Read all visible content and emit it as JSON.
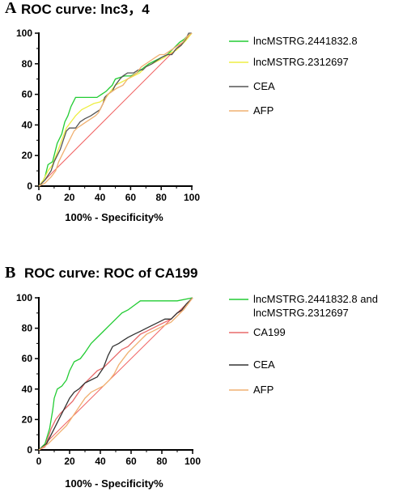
{
  "chart_data": [
    {
      "panel": "A",
      "type": "line",
      "title": "ROC curve: lnc3，4",
      "xlabel": "100% - Specificity%",
      "ylabel": "",
      "xlim": [
        0,
        100
      ],
      "ylim": [
        0,
        100
      ],
      "xticks": [
        "0",
        "20",
        "40",
        "60",
        "80",
        "100"
      ],
      "yticks": [
        "0",
        "20",
        "40",
        "60",
        "80",
        "100"
      ],
      "legend_position": "right",
      "series": [
        {
          "name": "lncMSTRG.2441832.8",
          "color": "#22cc33",
          "points": [
            [
              0,
              0
            ],
            [
              2,
              2
            ],
            [
              4,
              6
            ],
            [
              6,
              14
            ],
            [
              9,
              16
            ],
            [
              10,
              20
            ],
            [
              12,
              28
            ],
            [
              15,
              34
            ],
            [
              17,
              42
            ],
            [
              19,
              46
            ],
            [
              21,
              52
            ],
            [
              24,
              58
            ],
            [
              30,
              58
            ],
            [
              34,
              58
            ],
            [
              38,
              58
            ],
            [
              41,
              60
            ],
            [
              44,
              62
            ],
            [
              46,
              64
            ],
            [
              48,
              66
            ],
            [
              50,
              70
            ],
            [
              53,
              71
            ],
            [
              56,
              72
            ],
            [
              60,
              72
            ],
            [
              64,
              74
            ],
            [
              68,
              77
            ],
            [
              72,
              80
            ],
            [
              76,
              82
            ],
            [
              80,
              84
            ],
            [
              84,
              86
            ],
            [
              88,
              90
            ],
            [
              92,
              94
            ],
            [
              95,
              96
            ],
            [
              97,
              98
            ],
            [
              100,
              100
            ]
          ]
        },
        {
          "name": "lncMSTRG.2312697",
          "color": "#eeee44",
          "points": [
            [
              0,
              0
            ],
            [
              3,
              4
            ],
            [
              6,
              10
            ],
            [
              9,
              14
            ],
            [
              12,
              22
            ],
            [
              15,
              30
            ],
            [
              18,
              38
            ],
            [
              21,
              42
            ],
            [
              24,
              46
            ],
            [
              28,
              50
            ],
            [
              32,
              52
            ],
            [
              36,
              54
            ],
            [
              40,
              55
            ],
            [
              44,
              58
            ],
            [
              47,
              62
            ],
            [
              50,
              66
            ],
            [
              54,
              68
            ],
            [
              58,
              70
            ],
            [
              62,
              72
            ],
            [
              66,
              74
            ],
            [
              70,
              78
            ],
            [
              74,
              80
            ],
            [
              78,
              82
            ],
            [
              82,
              84
            ],
            [
              86,
              87
            ],
            [
              90,
              89
            ],
            [
              93,
              92
            ],
            [
              96,
              95
            ],
            [
              100,
              100
            ]
          ]
        },
        {
          "name": "CEA",
          "color": "#555555",
          "points": [
            [
              0,
              0
            ],
            [
              4,
              4
            ],
            [
              8,
              10
            ],
            [
              10,
              16
            ],
            [
              12,
              20
            ],
            [
              14,
              24
            ],
            [
              16,
              30
            ],
            [
              18,
              36
            ],
            [
              20,
              38
            ],
            [
              24,
              38
            ],
            [
              27,
              42
            ],
            [
              30,
              44
            ],
            [
              34,
              46
            ],
            [
              37,
              48
            ],
            [
              40,
              50
            ],
            [
              42,
              54
            ],
            [
              43,
              58
            ],
            [
              45,
              60
            ],
            [
              48,
              62
            ],
            [
              50,
              66
            ],
            [
              53,
              70
            ],
            [
              55,
              72
            ],
            [
              58,
              74
            ],
            [
              62,
              74
            ],
            [
              65,
              76
            ],
            [
              68,
              76
            ],
            [
              70,
              78
            ],
            [
              74,
              80
            ],
            [
              77,
              82
            ],
            [
              80,
              84
            ],
            [
              84,
              86
            ],
            [
              87,
              86
            ],
            [
              90,
              90
            ],
            [
              93,
              92
            ],
            [
              96,
              96
            ],
            [
              98,
              100
            ],
            [
              100,
              100
            ]
          ]
        },
        {
          "name": "AFP",
          "color": "#f0b070",
          "points": [
            [
              0,
              0
            ],
            [
              4,
              2
            ],
            [
              8,
              6
            ],
            [
              11,
              10
            ],
            [
              13,
              16
            ],
            [
              15,
              20
            ],
            [
              17,
              24
            ],
            [
              19,
              28
            ],
            [
              21,
              32
            ],
            [
              23,
              36
            ],
            [
              25,
              38
            ],
            [
              28,
              40
            ],
            [
              31,
              42
            ],
            [
              34,
              44
            ],
            [
              37,
              46
            ],
            [
              39,
              48
            ],
            [
              41,
              52
            ],
            [
              43,
              56
            ],
            [
              45,
              60
            ],
            [
              48,
              62
            ],
            [
              51,
              64
            ],
            [
              55,
              66
            ],
            [
              58,
              70
            ],
            [
              61,
              72
            ],
            [
              64,
              74
            ],
            [
              67,
              78
            ],
            [
              70,
              80
            ],
            [
              73,
              82
            ],
            [
              76,
              84
            ],
            [
              79,
              86
            ],
            [
              82,
              86
            ],
            [
              85,
              88
            ],
            [
              88,
              90
            ],
            [
              91,
              92
            ],
            [
              94,
              94
            ],
            [
              97,
              98
            ],
            [
              100,
              100
            ]
          ]
        },
        {
          "name": "",
          "color": "#f06060",
          "reference": true,
          "points": [
            [
              0,
              0
            ],
            [
              100,
              100
            ]
          ]
        }
      ]
    },
    {
      "panel": "B",
      "type": "line",
      "title": "ROC curve: ROC of CA199",
      "xlabel": "100% - Specificity%",
      "ylabel": "",
      "xlim": [
        0,
        100
      ],
      "ylim": [
        0,
        100
      ],
      "xticks": [
        "0",
        "20",
        "40",
        "60",
        "80",
        "100"
      ],
      "yticks": [
        "0",
        "20",
        "40",
        "60",
        "80",
        "100"
      ],
      "legend_position": "right",
      "series": [
        {
          "name": "lncMSTRG.2441832.8 and lncMSTRG.2312697",
          "color": "#22cc33",
          "points": [
            [
              0,
              0
            ],
            [
              4,
              4
            ],
            [
              7,
              14
            ],
            [
              9,
              26
            ],
            [
              10,
              34
            ],
            [
              12,
              40
            ],
            [
              15,
              42
            ],
            [
              18,
              46
            ],
            [
              20,
              52
            ],
            [
              23,
              58
            ],
            [
              27,
              60
            ],
            [
              30,
              64
            ],
            [
              34,
              70
            ],
            [
              38,
              74
            ],
            [
              42,
              78
            ],
            [
              46,
              82
            ],
            [
              50,
              86
            ],
            [
              54,
              90
            ],
            [
              58,
              92
            ],
            [
              62,
              95
            ],
            [
              66,
              98
            ],
            [
              72,
              98
            ],
            [
              80,
              98
            ],
            [
              90,
              98
            ],
            [
              100,
              100
            ]
          ]
        },
        {
          "name": "CA199",
          "color": "#e86a6a",
          "points": [
            [
              0,
              0
            ],
            [
              4,
              2
            ],
            [
              6,
              8
            ],
            [
              8,
              14
            ],
            [
              11,
              20
            ],
            [
              14,
              24
            ],
            [
              18,
              28
            ],
            [
              22,
              32
            ],
            [
              26,
              38
            ],
            [
              30,
              44
            ],
            [
              34,
              48
            ],
            [
              38,
              52
            ],
            [
              42,
              54
            ],
            [
              46,
              58
            ],
            [
              50,
              62
            ],
            [
              54,
              66
            ],
            [
              58,
              68
            ],
            [
              62,
              72
            ],
            [
              66,
              76
            ],
            [
              70,
              78
            ],
            [
              74,
              80
            ],
            [
              78,
              82
            ],
            [
              82,
              84
            ],
            [
              86,
              86
            ],
            [
              90,
              90
            ],
            [
              94,
              92
            ],
            [
              97,
              96
            ],
            [
              100,
              100
            ]
          ]
        },
        {
          "name": "CEA",
          "color": "#333333",
          "points": [
            [
              0,
              0
            ],
            [
              5,
              4
            ],
            [
              8,
              10
            ],
            [
              11,
              16
            ],
            [
              14,
              22
            ],
            [
              17,
              28
            ],
            [
              20,
              34
            ],
            [
              23,
              38
            ],
            [
              26,
              40
            ],
            [
              30,
              44
            ],
            [
              34,
              46
            ],
            [
              38,
              48
            ],
            [
              42,
              54
            ],
            [
              45,
              62
            ],
            [
              48,
              68
            ],
            [
              52,
              70
            ],
            [
              55,
              72
            ],
            [
              58,
              74
            ],
            [
              62,
              76
            ],
            [
              66,
              78
            ],
            [
              70,
              80
            ],
            [
              74,
              82
            ],
            [
              78,
              84
            ],
            [
              82,
              86
            ],
            [
              86,
              86
            ],
            [
              90,
              90
            ],
            [
              93,
              92
            ],
            [
              96,
              96
            ],
            [
              100,
              100
            ]
          ]
        },
        {
          "name": "AFP",
          "color": "#f0b070",
          "points": [
            [
              0,
              0
            ],
            [
              6,
              4
            ],
            [
              10,
              8
            ],
            [
              14,
              12
            ],
            [
              18,
              16
            ],
            [
              22,
              22
            ],
            [
              26,
              28
            ],
            [
              30,
              34
            ],
            [
              34,
              38
            ],
            [
              38,
              40
            ],
            [
              42,
              42
            ],
            [
              46,
              46
            ],
            [
              49,
              50
            ],
            [
              52,
              56
            ],
            [
              55,
              60
            ],
            [
              58,
              64
            ],
            [
              62,
              68
            ],
            [
              66,
              72
            ],
            [
              70,
              76
            ],
            [
              74,
              78
            ],
            [
              78,
              80
            ],
            [
              82,
              82
            ],
            [
              86,
              84
            ],
            [
              90,
              88
            ],
            [
              94,
              92
            ],
            [
              97,
              96
            ],
            [
              100,
              100
            ]
          ]
        },
        {
          "name": "",
          "color": "#f06060",
          "reference": true,
          "points": [
            [
              0,
              0
            ],
            [
              100,
              100
            ]
          ]
        }
      ]
    }
  ]
}
